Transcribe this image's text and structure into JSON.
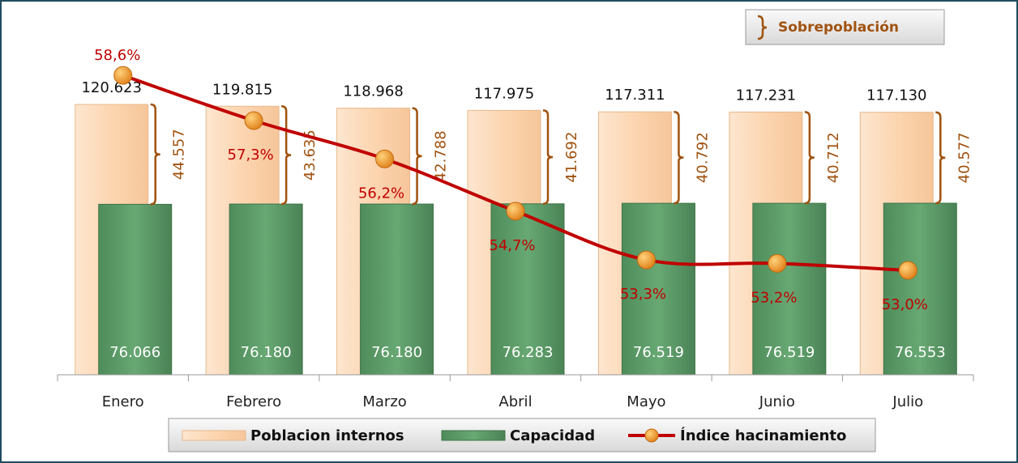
{
  "chart_data": {
    "type": "bar_line",
    "categories": [
      "Enero",
      "Febrero",
      "Marzo",
      "Abril",
      "Mayo",
      "Junio",
      "Julio"
    ],
    "series": [
      {
        "name": "Poblacion internos",
        "color": "#fcd5b0",
        "values": [
          120623,
          119815,
          118968,
          117975,
          117311,
          117231,
          117130
        ],
        "value_labels": [
          "120.623",
          "119.815",
          "118.968",
          "117.975",
          "117.311",
          "117.231",
          "117.130"
        ]
      },
      {
        "name": "Capacidad",
        "color": "#5e9b69",
        "values": [
          76066,
          76180,
          76180,
          76283,
          76519,
          76519,
          76553
        ],
        "value_labels": [
          "76.066",
          "76.180",
          "76.180",
          "76.283",
          "76.519",
          "76.519",
          "76.553"
        ]
      },
      {
        "name": "Índice hacinamiento",
        "color": "#c00000",
        "axis": "y2",
        "values": [
          58.6,
          57.3,
          56.2,
          54.7,
          53.3,
          53.2,
          53.0
        ],
        "value_labels": [
          "58,6%",
          "57,3%",
          "56,2%",
          "54,7%",
          "53,3%",
          "53,2%",
          "53,0%"
        ]
      }
    ],
    "sobrepoblacion": {
      "name": "Sobrepoblación",
      "color": "#a0520f",
      "values": [
        44557,
        43635,
        42788,
        41692,
        40792,
        40712,
        40577
      ],
      "value_labels": [
        "44.557",
        "43.635",
        "42.788",
        "41.692",
        "40.792",
        "40.712",
        "40.577"
      ]
    },
    "ylim": [
      0,
      160000
    ],
    "y2lim": [
      50,
      60.3
    ]
  }
}
